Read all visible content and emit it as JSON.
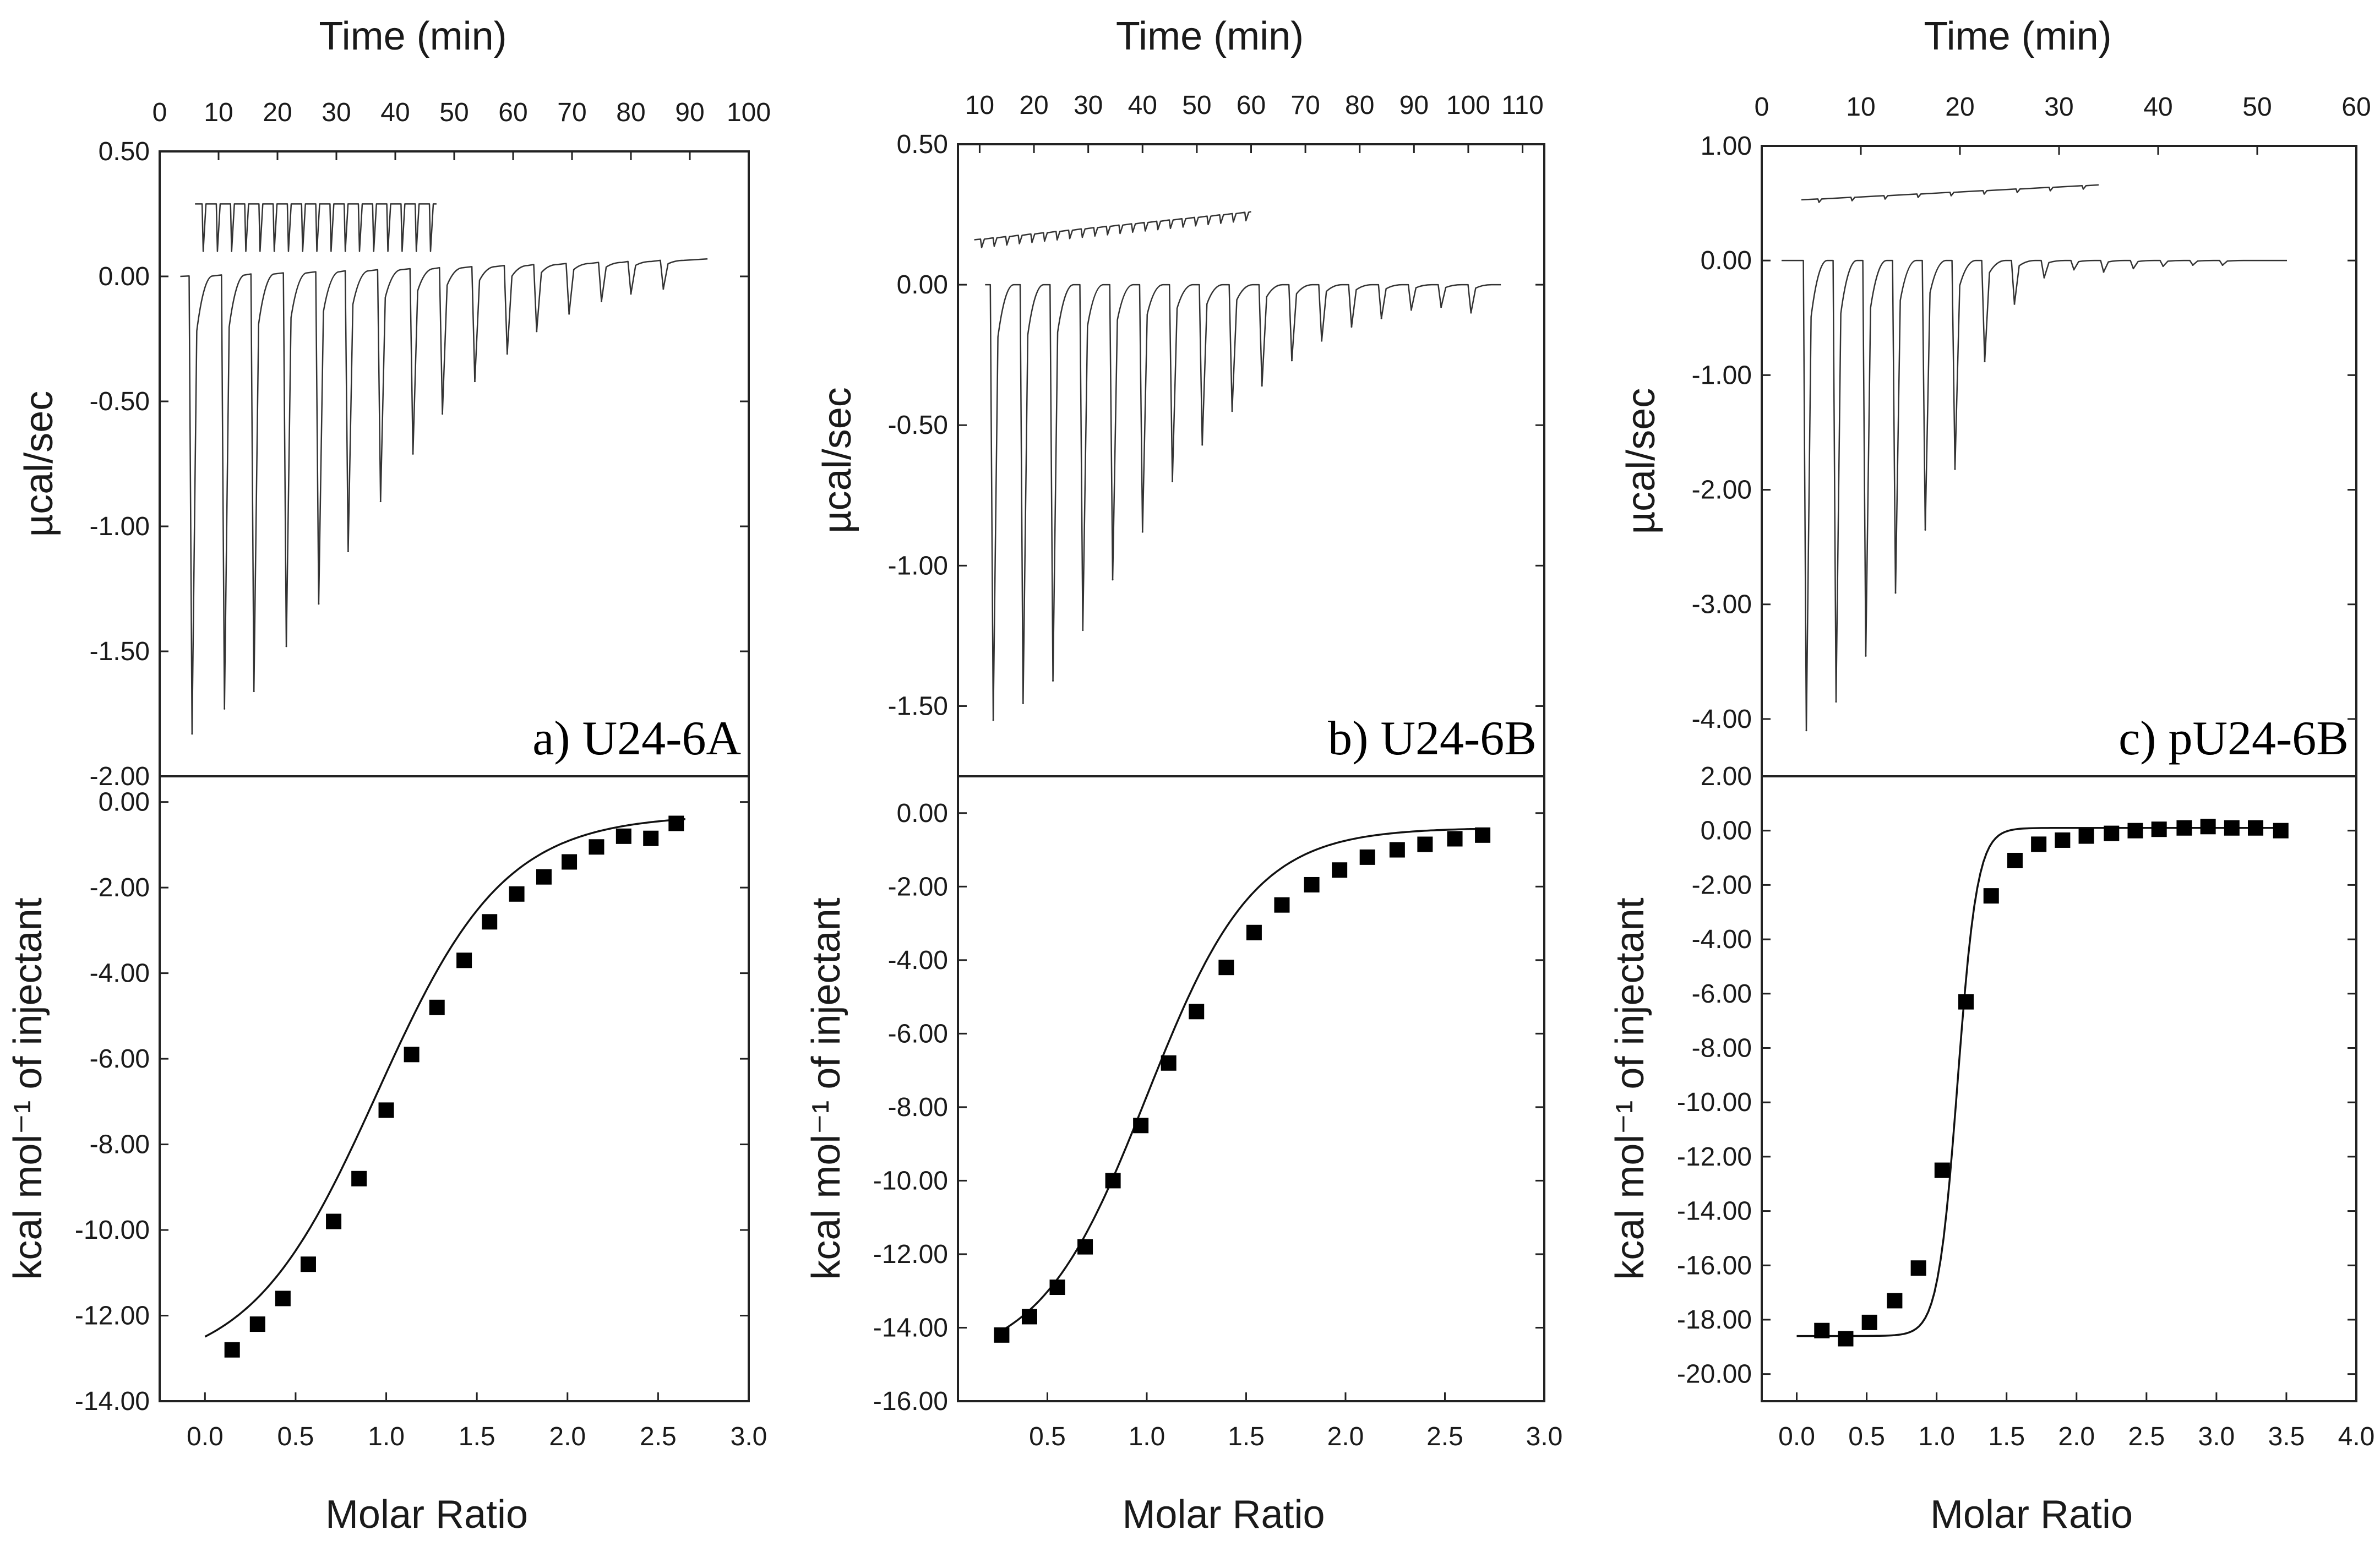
{
  "chart_data": [
    {
      "id": "a",
      "type": "line",
      "panel_label": "a) U24-6A",
      "top_plot": {
        "title": "Time (min)",
        "ylabel": "µcal/sec",
        "x_ticks": [
          "0",
          "10",
          "20",
          "30",
          "40",
          "50",
          "60",
          "70",
          "80",
          "90",
          "100"
        ],
        "xlim": [
          0,
          100
        ],
        "y_ticks": [
          "0.50",
          "0.00",
          "-0.50",
          "-1.00",
          "-1.50",
          "-2.00"
        ],
        "ylim": [
          -2.0,
          0.5
        ],
        "baseline": {
          "start_time": 3.5,
          "end_time": 93,
          "start_value": 0.0,
          "end_value": 0.07
        },
        "injection_times": [
          5.5,
          11,
          16,
          21.5,
          27,
          32,
          37.5,
          43,
          48,
          53.5,
          59,
          64,
          69.5,
          75,
          80,
          85.5
        ],
        "injection_peaks": [
          -1.83,
          -1.73,
          -1.66,
          -1.48,
          -1.31,
          -1.1,
          -0.9,
          -0.71,
          -0.55,
          -0.42,
          -0.31,
          -0.22,
          -0.15,
          -0.1,
          -0.07,
          -0.05
        ],
        "reference_trace": {
          "start_time": 6,
          "end_time": 47,
          "level": 0.29,
          "spike_depth": 0.19,
          "spike_count": 17
        }
      },
      "bottom_plot": {
        "xlabel": "Molar Ratio",
        "ylabel": "kcal mol⁻¹ of injectant",
        "x_ticks": [
          "0.0",
          "0.5",
          "1.0",
          "1.5",
          "2.0",
          "2.5",
          "3.0"
        ],
        "xlim": [
          -0.25,
          3.0
        ],
        "y_ticks": [
          "0.00",
          "-2.00",
          "-4.00",
          "-6.00",
          "-8.00",
          "-10.00",
          "-12.00",
          "-14.00"
        ],
        "ylim": [
          -14.0,
          0.6
        ],
        "points_x": [
          0.15,
          0.29,
          0.43,
          0.57,
          0.71,
          0.85,
          1.0,
          1.14,
          1.28,
          1.43,
          1.57,
          1.72,
          1.87,
          2.01,
          2.16,
          2.31,
          2.46,
          2.6
        ],
        "points_y": [
          -12.8,
          -12.2,
          -11.6,
          -10.8,
          -9.8,
          -8.8,
          -7.2,
          -5.9,
          -4.8,
          -3.7,
          -2.8,
          -2.15,
          -1.75,
          -1.4,
          -1.05,
          -0.8,
          -0.85,
          -0.5
        ],
        "fit": {
          "bottom": -13.3,
          "top": -0.3,
          "midpoint": 0.95,
          "steepness": 0.35,
          "x_start": 0.0,
          "x_end": 2.65
        }
      }
    },
    {
      "id": "b",
      "type": "line",
      "panel_label": "b) U24-6B",
      "top_plot": {
        "title": "Time (min)",
        "ylabel": "µcal/sec",
        "x_ticks": [
          "10",
          "20",
          "30",
          "40",
          "50",
          "60",
          "70",
          "80",
          "90",
          "100",
          "110"
        ],
        "xlim": [
          6,
          114
        ],
        "y_ticks": [
          "0.50",
          "0.00",
          "-0.50",
          "-1.00",
          "-1.50"
        ],
        "ylim": [
          -1.75,
          0.5
        ],
        "baseline": {
          "start_time": 11,
          "end_time": 106,
          "start_value": 0.0,
          "end_value": 0.0
        },
        "injection_times": [
          12.5,
          18,
          23.5,
          29,
          34.5,
          40,
          45.5,
          51,
          56.5,
          62,
          67.5,
          73,
          78.5,
          84,
          89.5,
          95,
          100.5
        ],
        "injection_peaks": [
          -1.55,
          -1.49,
          -1.41,
          -1.23,
          -1.05,
          -0.88,
          -0.7,
          -0.57,
          -0.45,
          -0.36,
          -0.27,
          -0.2,
          -0.15,
          -0.12,
          -0.09,
          -0.08,
          -0.1
        ],
        "reference_trace": {
          "start_time": 9,
          "end_time": 60,
          "level": 0.16,
          "end_level": 0.26,
          "spike_depth": 0.03,
          "spike_count": 22
        }
      },
      "bottom_plot": {
        "xlabel": "Molar Ratio",
        "ylabel": "kcal mol⁻¹ of injectant",
        "x_ticks": [
          "0.5",
          "1.0",
          "1.5",
          "2.0",
          "2.5",
          "3.0"
        ],
        "xlim": [
          0.05,
          3.0
        ],
        "y_ticks": [
          "0.00",
          "-2.00",
          "-4.00",
          "-6.00",
          "-8.00",
          "-10.00",
          "-12.00",
          "-14.00",
          "-16.00"
        ],
        "ylim": [
          -16.0,
          1.0
        ],
        "points_x": [
          0.27,
          0.41,
          0.55,
          0.69,
          0.83,
          0.97,
          1.11,
          1.25,
          1.4,
          1.54,
          1.68,
          1.83,
          1.97,
          2.11,
          2.26,
          2.4,
          2.55,
          2.69
        ],
        "points_y": [
          -14.2,
          -13.7,
          -12.9,
          -11.8,
          -10.0,
          -8.5,
          -6.8,
          -5.4,
          -4.2,
          -3.25,
          -2.5,
          -1.95,
          -1.55,
          -1.2,
          -1.0,
          -0.85,
          -0.7,
          -0.6
        ],
        "fit": {
          "bottom": -15.0,
          "top": -0.4,
          "midpoint": 1.0,
          "steepness": 0.27,
          "x_start": 0.27,
          "x_end": 2.72
        }
      }
    },
    {
      "id": "c",
      "type": "line",
      "panel_label": "c) pU24-6B",
      "top_plot": {
        "title": "Time (min)",
        "ylabel": "µcal/sec",
        "x_ticks": [
          "0",
          "10",
          "20",
          "30",
          "40",
          "50",
          "60"
        ],
        "xlim": [
          0,
          60
        ],
        "y_ticks": [
          "1.00",
          "0.00",
          "-1.00",
          "-2.00",
          "-3.00",
          "-4.00"
        ],
        "ylim": [
          -4.5,
          1.0
        ],
        "baseline": {
          "start_time": 2,
          "end_time": 53,
          "start_value": 0.0,
          "end_value": 0.0
        },
        "injection_times": [
          4.5,
          7.5,
          10.5,
          13.5,
          16.5,
          19.5,
          22.5,
          25.5,
          28.5,
          31.5,
          34.5,
          37.5,
          40.5,
          43.5,
          46.5
        ],
        "injection_peaks": [
          -4.1,
          -3.85,
          -3.45,
          -2.9,
          -2.35,
          -1.82,
          -0.88,
          -0.38,
          -0.15,
          -0.08,
          -0.1,
          -0.07,
          -0.05,
          -0.04,
          -0.04
        ],
        "reference_trace": {
          "start_time": 4,
          "end_time": 34,
          "level": 0.53,
          "end_level": 0.66,
          "spike_depth": 0.03,
          "spike_count": 9
        }
      },
      "bottom_plot": {
        "xlabel": "Molar Ratio",
        "ylabel": "kcal mol⁻¹ of injectant",
        "x_ticks": [
          "0.0",
          "0.5",
          "1.0",
          "1.5",
          "2.0",
          "2.5",
          "3.0",
          "3.5",
          "4.0"
        ],
        "xlim": [
          -0.25,
          4.0
        ],
        "y_ticks": [
          "2.00",
          "0.00",
          "-2.00",
          "-4.00",
          "-6.00",
          "-8.00",
          "-10.00",
          "-12.00",
          "-14.00",
          "-16.00",
          "-18.00",
          "-20.00"
        ],
        "ylim": [
          -21.0,
          2.0
        ],
        "points_x": [
          0.18,
          0.35,
          0.52,
          0.7,
          0.87,
          1.04,
          1.21,
          1.39,
          1.56,
          1.73,
          1.9,
          2.07,
          2.25,
          2.42,
          2.59,
          2.77,
          2.94,
          3.11,
          3.28,
          3.46
        ],
        "points_y": [
          -18.4,
          -18.7,
          -18.1,
          -17.3,
          -16.1,
          -12.5,
          -6.3,
          -2.4,
          -1.1,
          -0.5,
          -0.35,
          -0.2,
          -0.1,
          0.0,
          0.05,
          0.1,
          0.15,
          0.1,
          0.1,
          0.0
        ],
        "fit": {
          "bottom": -18.6,
          "top": 0.1,
          "midpoint": 1.15,
          "steepness": 0.07,
          "x_start": 0.0,
          "x_end": 3.5
        }
      }
    }
  ]
}
